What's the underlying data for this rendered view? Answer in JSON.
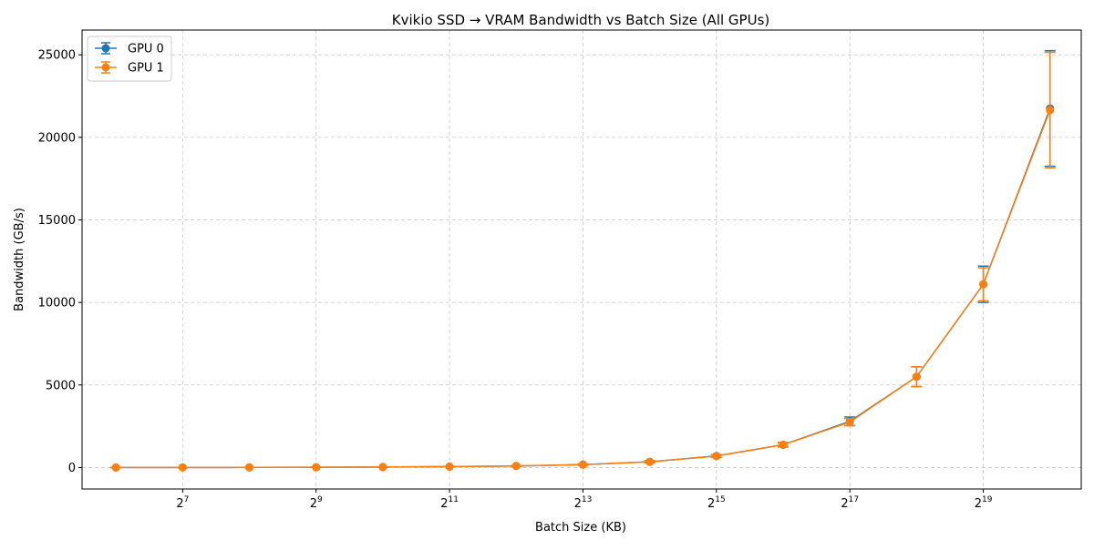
{
  "chart_data": {
    "type": "line",
    "title": "Kvikio SSD → VRAM Bandwidth vs Batch Size (All GPUs)",
    "xlabel": "Batch Size (KB)",
    "ylabel": "Bandwidth (GB/s)",
    "x_scale": "log2",
    "x": [
      64,
      128,
      256,
      512,
      1024,
      2048,
      4096,
      8192,
      16384,
      32768,
      65536,
      131072,
      262144,
      524288,
      1048576
    ],
    "xlim": [
      45,
      1450000
    ],
    "x_ticks": [
      {
        "value": 128,
        "base": "2",
        "exp": "7"
      },
      {
        "value": 512,
        "base": "2",
        "exp": "9"
      },
      {
        "value": 2048,
        "base": "2",
        "exp": "11"
      },
      {
        "value": 8192,
        "base": "2",
        "exp": "13"
      },
      {
        "value": 32768,
        "base": "2",
        "exp": "15"
      },
      {
        "value": 131072,
        "base": "2",
        "exp": "17"
      },
      {
        "value": 524288,
        "base": "2",
        "exp": "19"
      }
    ],
    "ylim": [
      -1300,
      26500
    ],
    "y_ticks": [
      0,
      5000,
      10000,
      15000,
      20000,
      25000
    ],
    "y_tick_labels": [
      "0",
      "5000",
      "10000",
      "15000",
      "20000",
      "25000"
    ],
    "grid": true,
    "legend_position": "upper-left",
    "series": [
      {
        "name": "GPU 0",
        "color": "#1f77b4",
        "marker": "circle",
        "values": [
          2,
          4,
          8,
          16,
          30,
          55,
          95,
          180,
          350,
          700,
          1380,
          2800,
          5500,
          11100,
          21750
        ],
        "errors": [
          1,
          2,
          4,
          6,
          10,
          15,
          25,
          40,
          60,
          80,
          130,
          260,
          600,
          1100,
          3500
        ]
      },
      {
        "name": "GPU 1",
        "color": "#ff7f0e",
        "marker": "circle",
        "values": [
          2,
          4,
          8,
          16,
          30,
          55,
          95,
          170,
          340,
          690,
          1380,
          2750,
          5500,
          11100,
          21650
        ],
        "errors": [
          1,
          2,
          4,
          6,
          10,
          15,
          25,
          40,
          60,
          80,
          100,
          220,
          600,
          1000,
          3500
        ]
      }
    ]
  }
}
